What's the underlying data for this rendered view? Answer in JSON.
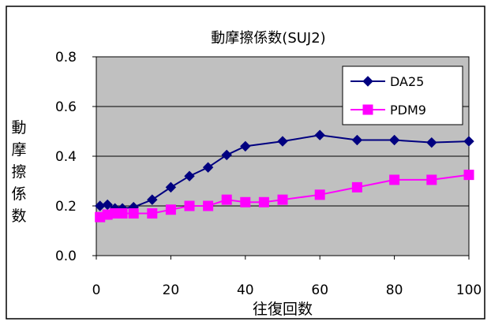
{
  "chart_data": {
    "type": "line",
    "title": "動摩擦係数(SUJ2)",
    "xlabel": "往復回数",
    "ylabel": "動摩擦係数",
    "xlim": [
      0,
      100
    ],
    "ylim": [
      0,
      0.8
    ],
    "x_ticks": [
      "0",
      "20",
      "40",
      "60",
      "80",
      "100"
    ],
    "y_ticks": [
      "0.0",
      "0.2",
      "0.4",
      "0.6",
      "0.8"
    ],
    "grid": "horizontal",
    "legend_position": "top-right",
    "series": [
      {
        "name": "DA25",
        "color": "#000080",
        "marker": "diamond",
        "points": [
          [
            1,
            0.2
          ],
          [
            3,
            0.205
          ],
          [
            5,
            0.19
          ],
          [
            7,
            0.19
          ],
          [
            10,
            0.195
          ],
          [
            15,
            0.225
          ],
          [
            20,
            0.275
          ],
          [
            25,
            0.32
          ],
          [
            30,
            0.355
          ],
          [
            35,
            0.405
          ],
          [
            40,
            0.44
          ],
          [
            50,
            0.46
          ],
          [
            60,
            0.485
          ],
          [
            70,
            0.465
          ],
          [
            80,
            0.465
          ],
          [
            90,
            0.455
          ],
          [
            100,
            0.46
          ]
        ]
      },
      {
        "name": "PDM9",
        "color": "#ff00ff",
        "marker": "square",
        "points": [
          [
            1,
            0.155
          ],
          [
            3,
            0.165
          ],
          [
            5,
            0.17
          ],
          [
            7,
            0.17
          ],
          [
            10,
            0.17
          ],
          [
            15,
            0.17
          ],
          [
            20,
            0.185
          ],
          [
            25,
            0.2
          ],
          [
            30,
            0.2
          ],
          [
            35,
            0.225
          ],
          [
            40,
            0.215
          ],
          [
            45,
            0.215
          ],
          [
            50,
            0.225
          ],
          [
            60,
            0.245
          ],
          [
            70,
            0.275
          ],
          [
            80,
            0.305
          ],
          [
            90,
            0.305
          ],
          [
            100,
            0.325
          ]
        ]
      }
    ]
  }
}
